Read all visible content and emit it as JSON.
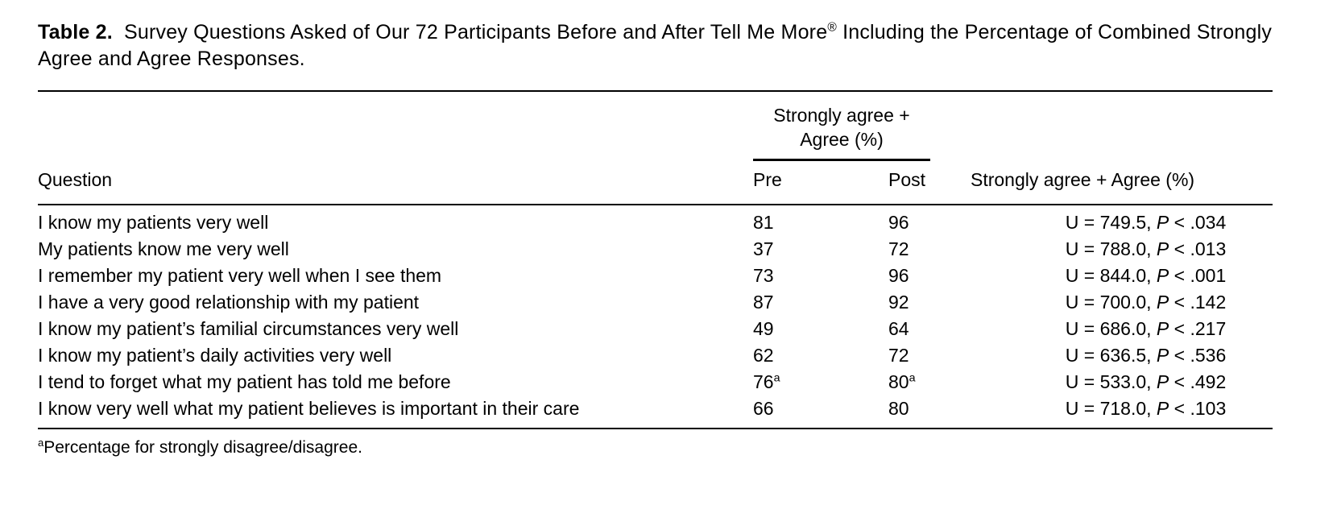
{
  "colors": {
    "text": "#000000",
    "background": "#ffffff",
    "rule": "#000000"
  },
  "title": {
    "label": "Table 2.",
    "text": "Survey Questions Asked of Our 72 Participants Before and After Tell Me More",
    "registered_mark": "®",
    "text_after": "Including the Percentage of Combined Strongly Agree and Agree Responses."
  },
  "table": {
    "spanner": {
      "line1": "Strongly agree +",
      "line2": "Agree (%)"
    },
    "columns": {
      "question": "Question",
      "pre": "Pre",
      "post": "Post",
      "stat": "Strongly agree + Agree (%)"
    },
    "rows": [
      {
        "question": "I know my patients very well",
        "pre": "81",
        "pre_sup": null,
        "post": "96",
        "post_sup": null,
        "stat_u": "U = 749.5, ",
        "stat_p": "P",
        "stat_rest": " < .034"
      },
      {
        "question": "My patients know me very well",
        "pre": "37",
        "pre_sup": null,
        "post": "72",
        "post_sup": null,
        "stat_u": "U = 788.0, ",
        "stat_p": "P",
        "stat_rest": " < .013"
      },
      {
        "question": "I remember my patient very well when I see them",
        "pre": "73",
        "pre_sup": null,
        "post": "96",
        "post_sup": null,
        "stat_u": "U = 844.0, ",
        "stat_p": "P",
        "stat_rest": " < .001"
      },
      {
        "question": "I have a very good relationship with my patient",
        "pre": "87",
        "pre_sup": null,
        "post": "92",
        "post_sup": null,
        "stat_u": "U = 700.0, ",
        "stat_p": "P",
        "stat_rest": " < .142"
      },
      {
        "question": "I know my patient’s familial circumstances very well",
        "pre": "49",
        "pre_sup": null,
        "post": "64",
        "post_sup": null,
        "stat_u": "U = 686.0, ",
        "stat_p": "P",
        "stat_rest": " < .217"
      },
      {
        "question": "I know my patient’s daily activities very well",
        "pre": "62",
        "pre_sup": null,
        "post": "72",
        "post_sup": null,
        "stat_u": "U = 636.5, ",
        "stat_p": "P",
        "stat_rest": " < .536"
      },
      {
        "question": "I tend to forget what my patient has told me before",
        "pre": "76",
        "pre_sup": "a",
        "post": "80",
        "post_sup": "a",
        "stat_u": "U = 533.0, ",
        "stat_p": "P",
        "stat_rest": " < .492"
      },
      {
        "question": "I know very well what my patient believes is important in their care",
        "pre": "66",
        "pre_sup": null,
        "post": "80",
        "post_sup": null,
        "stat_u": "U = 718.0, ",
        "stat_p": "P",
        "stat_rest": " < .103"
      }
    ],
    "footnote": {
      "marker": "a",
      "text": "Percentage for strongly disagree/disagree."
    }
  }
}
